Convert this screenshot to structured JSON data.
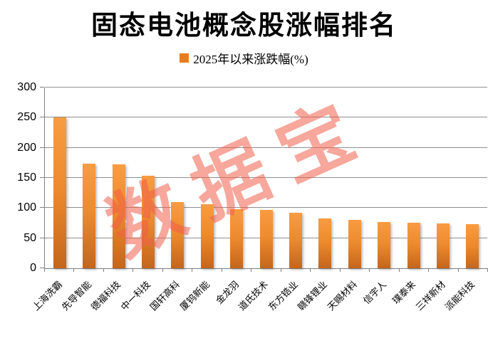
{
  "title": "固态电池概念股涨幅排名",
  "legend": {
    "label": "2025年以来涨跌幅(%)"
  },
  "watermark": "数据宝",
  "colors": {
    "legend_swatch": "#E87D1E",
    "bar_top": "#F89C42",
    "bar_mid": "#EC8A2E",
    "bar_bottom": "#C4661C",
    "grid": "#8F8F8F",
    "axis": "#7F7F7F",
    "watermark": "rgba(240,95,75,0.55)",
    "text": "#000000"
  },
  "chart_data": {
    "type": "bar",
    "title": "固态电池概念股涨幅排名",
    "series_name": "2025年以来涨跌幅(%)",
    "categories": [
      "上海洗霸",
      "先导智能",
      "德福科技",
      "中一科技",
      "国轩高科",
      "厦钨新能",
      "金龙羽",
      "道氏技术",
      "东方锆业",
      "赣锋锂业",
      "天赐材料",
      "信宇人",
      "璞泰来",
      "三祥新材",
      "派能科技"
    ],
    "values": [
      250,
      174,
      172,
      153,
      110,
      106,
      98,
      97,
      92,
      83,
      80,
      77,
      76,
      75,
      73
    ],
    "xlabel": "",
    "ylabel": "",
    "ylim": [
      0,
      300
    ],
    "yticks": [
      300,
      250,
      200,
      150,
      100,
      50,
      0
    ],
    "grid": true,
    "legend_position": "top-center"
  }
}
